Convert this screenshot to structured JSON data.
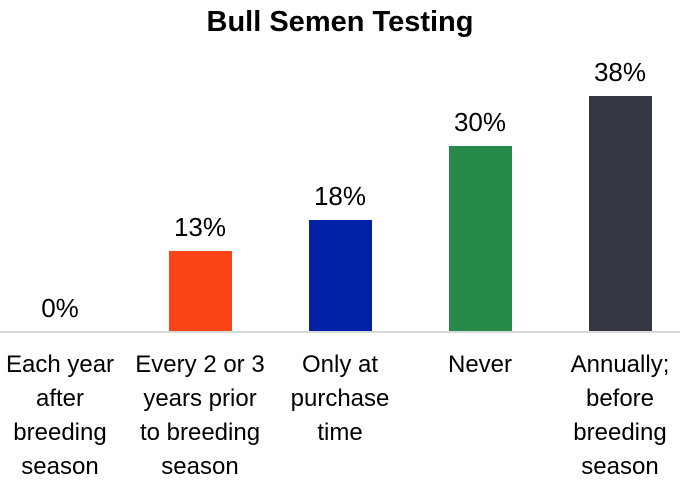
{
  "chart_data": {
    "type": "bar",
    "title": "Bull Semen Testing",
    "categories": [
      "Each year\nafter\nbreeding\nseason",
      "Every 2 or 3\nyears prior\nto breeding\nseason",
      "Only at\npurchase\ntime",
      "Never",
      "Annually;\nbefore\nbreeding\nseason"
    ],
    "values": [
      0,
      13,
      18,
      30,
      38
    ],
    "value_labels": [
      "0%",
      "13%",
      "18%",
      "30%",
      "38%"
    ],
    "bar_colors": [
      null,
      "#fa4616",
      "#0221a5",
      "#27894a",
      "#343741"
    ],
    "xlabel": "",
    "ylabel": "",
    "ylim": [
      0,
      40
    ],
    "grid": false,
    "legend": false,
    "y_axis_visible": false,
    "value_label_position": "above",
    "axis_line_color": "#d9d9d9",
    "background_color": "#ffffff",
    "text_color": "#000000"
  }
}
